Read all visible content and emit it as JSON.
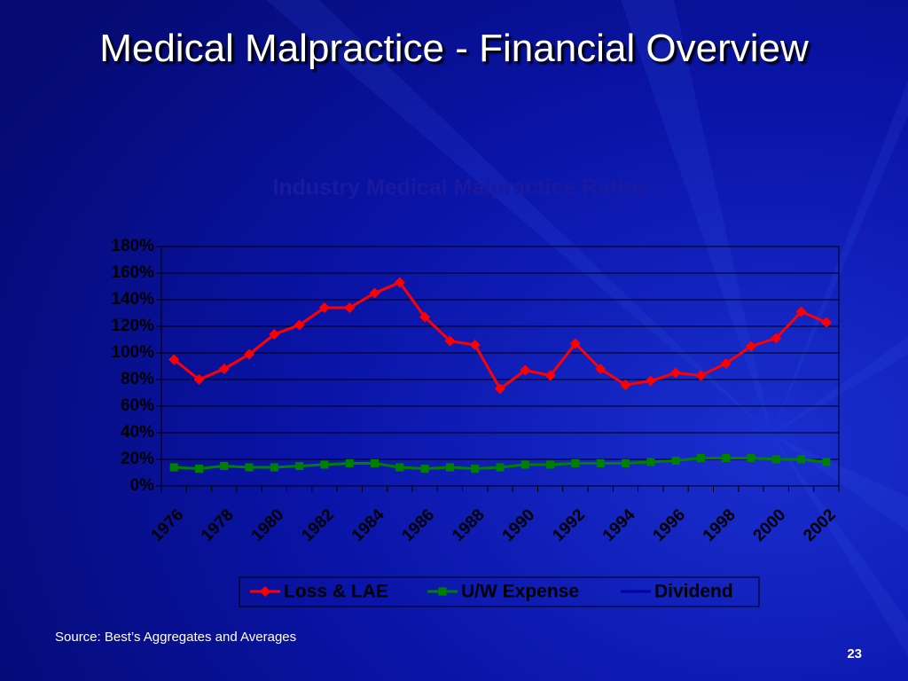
{
  "slide_title": "Medical Malpractice - Financial Overview",
  "chart_data": {
    "type": "line",
    "title": "Industry Medical Malpractice Ratios",
    "categories": [
      "1976",
      null,
      "1978",
      null,
      "1980",
      null,
      "1982",
      null,
      "1984",
      null,
      "1986",
      null,
      "1988",
      null,
      "1990",
      null,
      "1992",
      null,
      "1994",
      null,
      "1996",
      null,
      "1998",
      null,
      "2000",
      null,
      "2002"
    ],
    "series": [
      {
        "name": "Loss & LAE",
        "color": "#ff0000",
        "marker": "diamond",
        "values": [
          95,
          80,
          88,
          99,
          114,
          121,
          134,
          134,
          145,
          153,
          127,
          109,
          106,
          73,
          87,
          83,
          107,
          88,
          76,
          79,
          85,
          83,
          92,
          105,
          111,
          131,
          123
        ]
      },
      {
        "name": "U/W Expense",
        "color": "#008000",
        "marker": "square",
        "values": [
          14,
          13,
          15,
          14,
          14,
          15,
          16,
          17,
          17,
          14,
          13,
          14,
          13,
          14,
          16,
          16,
          17,
          17,
          17,
          18,
          19,
          21,
          21,
          21,
          20,
          20,
          18
        ]
      },
      {
        "name": "Dividend",
        "color": "#0000a8",
        "marker": "none",
        "values": [
          null,
          null,
          null,
          null,
          null,
          null,
          null,
          null,
          null,
          null,
          null,
          null,
          null,
          null,
          null,
          null,
          null,
          null,
          null,
          null,
          null,
          null,
          null,
          null,
          null,
          null,
          null
        ]
      }
    ],
    "ylim": [
      0,
      180
    ],
    "yticks": [
      {
        "value": 0,
        "label": "0%"
      },
      {
        "value": 20,
        "label": "20%"
      },
      {
        "value": 40,
        "label": "40%"
      },
      {
        "value": 60,
        "label": "60%"
      },
      {
        "value": 80,
        "label": "80%"
      },
      {
        "value": 100,
        "label": "100%"
      },
      {
        "value": 120,
        "label": "120%"
      },
      {
        "value": 140,
        "label": "140%"
      },
      {
        "value": 160,
        "label": "160%"
      },
      {
        "value": 180,
        "label": "180%"
      }
    ],
    "grid": true,
    "legend": "bottom"
  },
  "source": "Source: Best’s Aggregates and Averages",
  "page_number": 23
}
